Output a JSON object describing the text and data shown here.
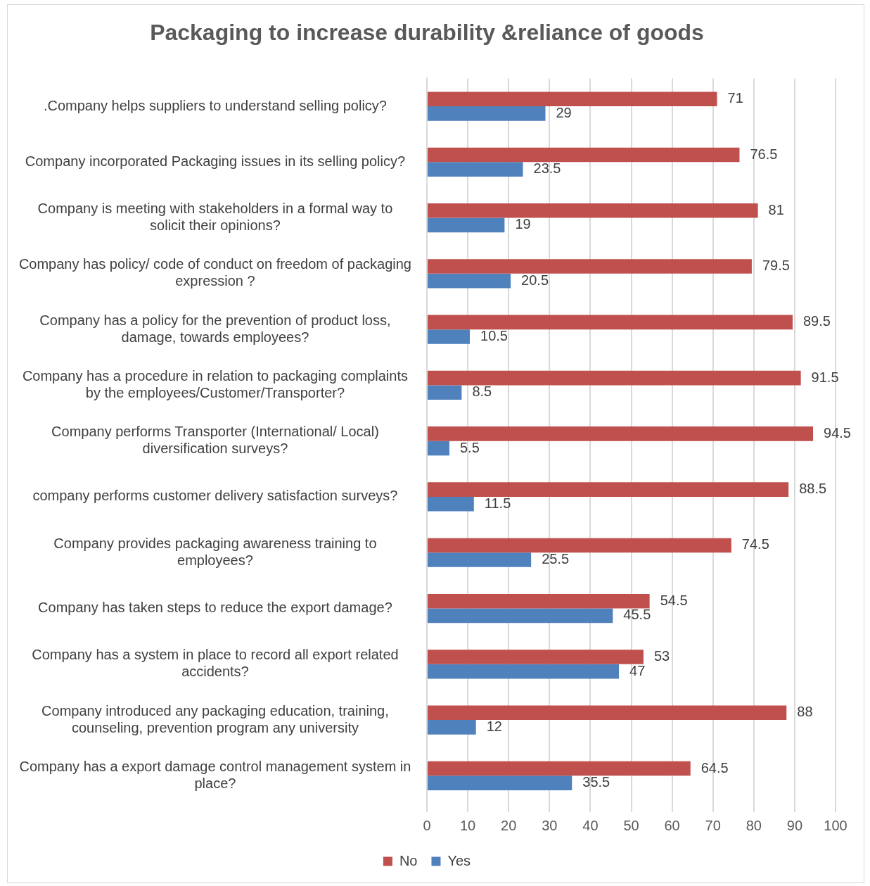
{
  "chart_data": {
    "type": "bar",
    "orientation": "horizontal",
    "title": "Packaging to increase durability &reliance of goods",
    "categories": [
      ".Company helps suppliers to understand selling policy?",
      "Company incorporated Packaging issues in its selling policy?",
      "Company is meeting with stakeholders in a formal way to solicit their opinions?",
      "Company has policy/ code of conduct on freedom of packaging expression ?",
      "Company has a policy for the prevention of product loss, damage, towards employees?",
      "Company has a procedure in relation to packaging complaints by the employees/Customer/Transporter?",
      "Company performs Transporter (International/ Local) diversification surveys?",
      "company performs customer delivery satisfaction surveys?",
      "Company provides packaging awareness training to employees?",
      "Company has taken steps to reduce the export damage?",
      "Company has a system in place to record all export related accidents?",
      "Company introduced any packaging education, training, counseling, prevention program any university",
      "Company has a export damage control management system in place?"
    ],
    "series": [
      {
        "name": "No",
        "color": "#c0504d",
        "values": [
          71,
          76.5,
          81,
          79.5,
          89.5,
          91.5,
          94.5,
          88.5,
          74.5,
          54.5,
          53,
          88,
          64.5
        ]
      },
      {
        "name": "Yes",
        "color": "#4f81bd",
        "values": [
          29,
          23.5,
          19,
          20.5,
          10.5,
          8.5,
          5.5,
          11.5,
          25.5,
          45.5,
          47,
          12,
          35.5
        ]
      }
    ],
    "xlim": [
      0,
      100
    ],
    "xticks": [
      0,
      10,
      20,
      30,
      40,
      50,
      60,
      70,
      80,
      90,
      100
    ],
    "grid": "x",
    "legend": "bottom",
    "data_labels": true
  }
}
